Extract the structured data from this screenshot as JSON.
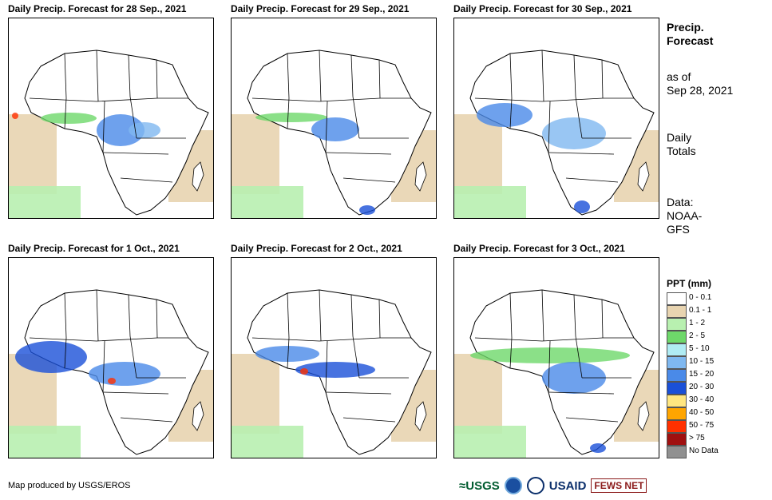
{
  "panels": [
    {
      "title": "Daily Precip. Forecast for 28 Sep., 2021"
    },
    {
      "title": "Daily Precip. Forecast for 29 Sep., 2021"
    },
    {
      "title": "Daily Precip. Forecast for 30 Sep., 2021"
    },
    {
      "title": "Daily Precip. Forecast for 1 Oct., 2021"
    },
    {
      "title": "Daily Precip. Forecast for 2 Oct., 2021"
    },
    {
      "title": "Daily Precip. Forecast for 3 Oct., 2021"
    }
  ],
  "side": {
    "title_line1": "Precip.",
    "title_line2": "Forecast",
    "asof_line1": "as of",
    "asof_line2": "Sep 28, 2021",
    "totals_line1": "Daily",
    "totals_line2": "Totals",
    "source_line1": "Data:",
    "source_line2": "NOAA-",
    "source_line3": "GFS"
  },
  "legend": {
    "title": "PPT (mm)",
    "items": [
      {
        "label": "0 - 0.1",
        "color": "#ffffff"
      },
      {
        "label": "0.1 - 1",
        "color": "#e8d4b0"
      },
      {
        "label": "1 - 2",
        "color": "#b8f0b0"
      },
      {
        "label": "2 - 5",
        "color": "#6ed86a"
      },
      {
        "label": "5 - 10",
        "color": "#b0ecf4"
      },
      {
        "label": "10 - 15",
        "color": "#7fb8f0"
      },
      {
        "label": "15 - 20",
        "color": "#4a8ae8"
      },
      {
        "label": "20 - 30",
        "color": "#1a50d8"
      },
      {
        "label": "30 - 40",
        "color": "#ffe680"
      },
      {
        "label": "40 - 50",
        "color": "#ffa500"
      },
      {
        "label": "50 - 75",
        "color": "#ff3000"
      },
      {
        "label": "> 75",
        "color": "#a01010"
      },
      {
        "label": "No Data",
        "color": "#909090"
      }
    ]
  },
  "footer": {
    "credit": "Map produced by USGS/EROS",
    "logo_usgs": "≈USGS",
    "logo_usaid": "USAID",
    "logo_fews": "FEWS NET"
  }
}
